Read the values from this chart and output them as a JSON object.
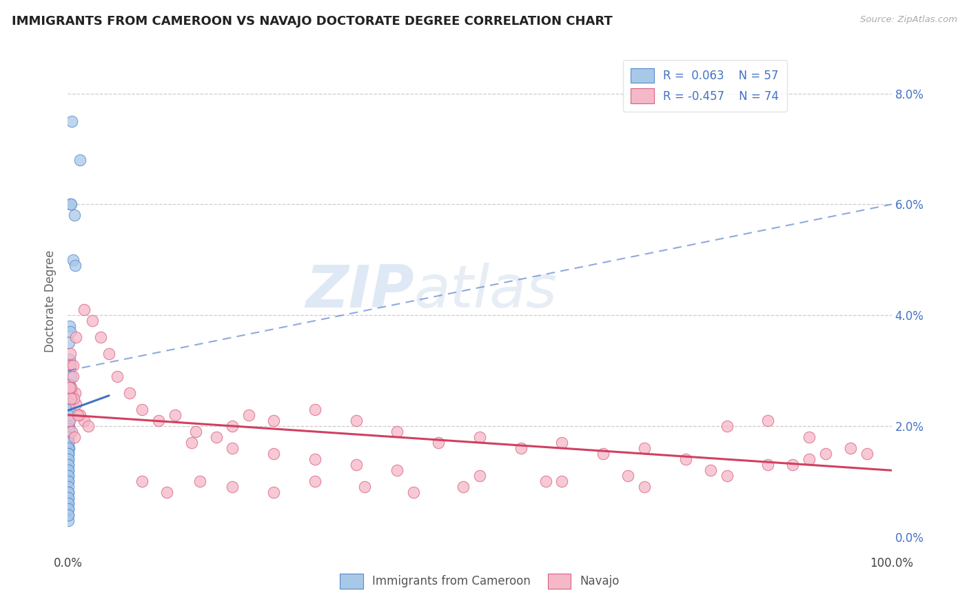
{
  "title": "IMMIGRANTS FROM CAMEROON VS NAVAJO DOCTORATE DEGREE CORRELATION CHART",
  "source": "Source: ZipAtlas.com",
  "ylabel": "Doctorate Degree",
  "xlim": [
    0,
    100
  ],
  "ylim_bottom": -0.3,
  "ylim_top": 8.8,
  "blue_color": "#a8c8e8",
  "blue_edge_color": "#5588cc",
  "blue_line_color": "#4472c4",
  "pink_color": "#f5b8c8",
  "pink_edge_color": "#d96080",
  "pink_line_color": "#d04060",
  "legend_blue_R": "R =  0.063",
  "legend_blue_N": "N = 57",
  "legend_pink_R": "R = -0.457",
  "legend_pink_N": "N = 74",
  "watermark_zip": "ZIP",
  "watermark_atlas": "atlas",
  "blue_scatter_x": [
    0.5,
    1.5,
    0.3,
    0.4,
    0.8,
    0.6,
    0.9,
    0.2,
    0.3,
    0.1,
    0.2,
    0.3,
    0.4,
    0.1,
    0.2,
    0.05,
    0.1,
    0.15,
    0.2,
    0.05,
    0.1,
    0.15,
    0.1,
    0.12,
    0.18,
    0.05,
    0.08,
    0.05,
    0.1,
    0.03,
    0.07,
    0.04,
    0.05,
    0.02,
    0.08,
    0.04,
    0.07,
    0.02,
    0.05,
    0.03,
    0.02,
    0.07,
    0.04,
    0.05,
    0.02,
    0.08,
    0.05,
    0.03,
    0.06,
    0.02,
    0.04,
    0.03,
    0.02,
    0.06,
    0.03,
    0.05,
    0.02
  ],
  "blue_scatter_y": [
    7.5,
    6.8,
    6.0,
    6.0,
    5.8,
    5.0,
    4.9,
    3.8,
    3.7,
    3.5,
    3.2,
    3.1,
    2.9,
    2.75,
    2.75,
    2.5,
    2.4,
    2.4,
    2.3,
    2.2,
    2.1,
    2.1,
    2.0,
    1.95,
    1.9,
    1.8,
    1.75,
    1.7,
    1.6,
    1.5,
    1.4,
    1.3,
    1.2,
    1.1,
    1.0,
    1.8,
    1.7,
    1.6,
    1.5,
    1.5,
    1.4,
    1.3,
    1.2,
    1.1,
    1.0,
    0.9,
    0.8,
    0.7,
    0.6,
    0.5,
    0.4,
    0.3,
    0.8,
    0.7,
    0.6,
    0.5,
    0.4
  ],
  "pink_scatter_x": [
    1.0,
    2.0,
    3.0,
    4.0,
    5.0,
    6.0,
    7.5,
    9.0,
    11.0,
    13.0,
    15.5,
    18.0,
    20.0,
    22.0,
    25.0,
    30.0,
    35.0,
    40.0,
    45.0,
    50.0,
    55.0,
    60.0,
    65.0,
    70.0,
    75.0,
    80.0,
    85.0,
    90.0,
    95.0,
    97.0,
    0.5,
    1.0,
    1.5,
    2.0,
    2.5,
    0.3,
    0.6,
    0.9,
    0.4,
    0.7,
    0.2,
    0.5,
    0.3,
    0.6,
    0.2,
    0.4,
    1.2,
    0.8,
    15.0,
    20.0,
    25.0,
    30.0,
    35.0,
    40.0,
    50.0,
    60.0,
    70.0,
    80.0,
    85.0,
    90.0,
    92.0,
    88.0,
    78.0,
    68.0,
    58.0,
    48.0,
    42.0,
    36.0,
    30.0,
    25.0,
    20.0,
    16.0,
    12.0,
    9.0
  ],
  "pink_scatter_y": [
    3.6,
    4.1,
    3.9,
    3.6,
    3.3,
    2.9,
    2.6,
    2.3,
    2.1,
    2.2,
    1.9,
    1.8,
    2.0,
    2.2,
    2.1,
    2.3,
    2.1,
    1.9,
    1.7,
    1.8,
    1.6,
    1.7,
    1.5,
    1.6,
    1.4,
    2.0,
    2.1,
    1.8,
    1.6,
    1.5,
    2.6,
    2.4,
    2.2,
    2.1,
    2.0,
    3.1,
    2.9,
    2.6,
    2.7,
    2.5,
    2.1,
    1.9,
    3.3,
    3.1,
    2.7,
    2.5,
    2.2,
    1.8,
    1.7,
    1.6,
    1.5,
    1.4,
    1.3,
    1.2,
    1.1,
    1.0,
    0.9,
    1.1,
    1.3,
    1.4,
    1.5,
    1.3,
    1.2,
    1.1,
    1.0,
    0.9,
    0.8,
    0.9,
    1.0,
    0.8,
    0.9,
    1.0,
    0.8,
    1.0
  ],
  "blue_solid_trend_x": [
    0,
    5
  ],
  "blue_solid_trend_y": [
    2.28,
    2.55
  ],
  "blue_dashed_trend_x": [
    0,
    100
  ],
  "blue_dashed_trend_y": [
    3.0,
    6.0
  ],
  "pink_solid_trend_x": [
    0,
    100
  ],
  "pink_solid_trend_y": [
    2.2,
    1.2
  ],
  "background_color": "#ffffff",
  "grid_color": "#cccccc",
  "title_color": "#222222",
  "axis_label_color": "#666666",
  "right_tick_color": "#4472c4"
}
